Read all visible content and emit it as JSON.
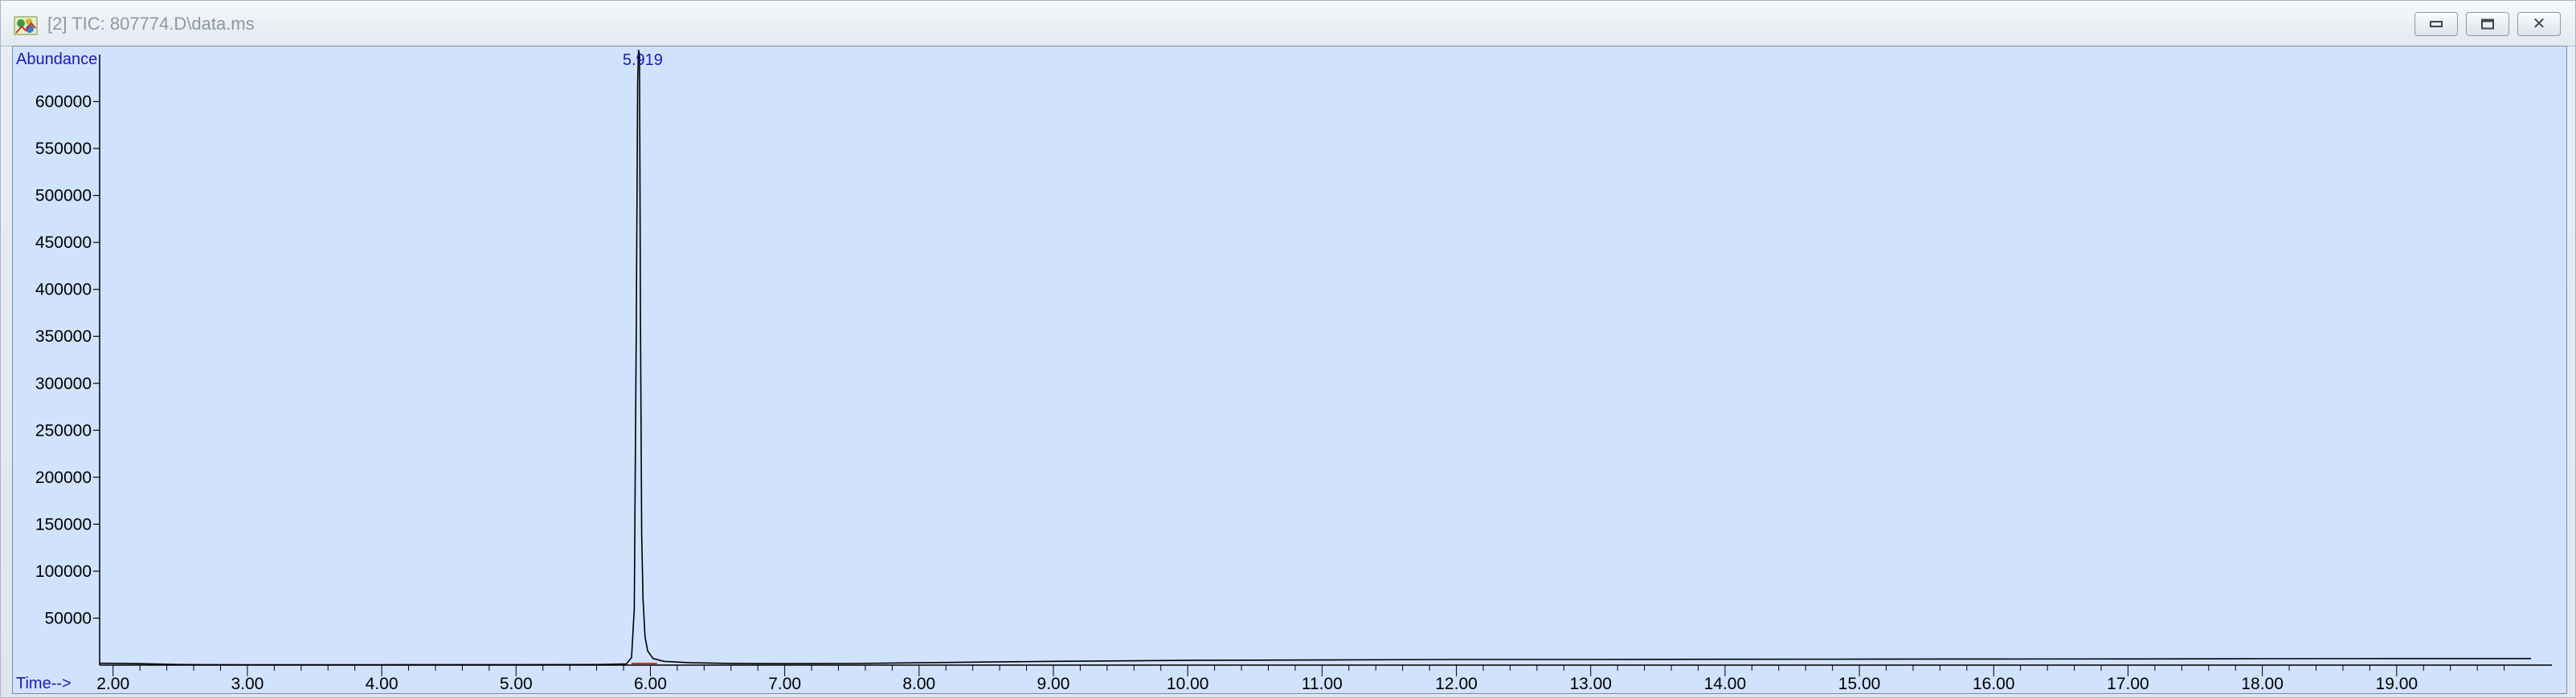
{
  "window": {
    "title": "[2] TIC: 807774.D\\data.ms",
    "icon": "chromatogram-app-icon",
    "buttons": [
      "minimize",
      "restore",
      "close"
    ]
  },
  "chart_data": {
    "type": "line",
    "ylabel": "Abundance",
    "xlabel": "Time-->",
    "xlim": [
      1.9,
      20.0
    ],
    "ylim": [
      0,
      650000
    ],
    "x_ticks": [
      2.0,
      3.0,
      4.0,
      5.0,
      6.0,
      7.0,
      8.0,
      9.0,
      10.0,
      11.0,
      12.0,
      13.0,
      14.0,
      15.0,
      16.0,
      17.0,
      18.0,
      19.0
    ],
    "x_tick_labels": [
      "2.00",
      "3.00",
      "4.00",
      "5.00",
      "6.00",
      "7.00",
      "8.00",
      "9.00",
      "10.00",
      "11.00",
      "12.00",
      "13.00",
      "14.00",
      "15.00",
      "16.00",
      "17.00",
      "18.00",
      "19.00"
    ],
    "y_ticks": [
      50000,
      100000,
      150000,
      200000,
      250000,
      300000,
      350000,
      400000,
      450000,
      500000,
      550000,
      600000
    ],
    "y_tick_labels": [
      "50000",
      "100000",
      "150000",
      "200000",
      "250000",
      "300000",
      "350000",
      "400000",
      "450000",
      "500000",
      "550000",
      "600000"
    ],
    "peak_label": "5.919",
    "series": [
      {
        "x": [
          1.9,
          2.2,
          2.5,
          3.0,
          4.0,
          5.0,
          5.6,
          5.82,
          5.86,
          5.88,
          5.895,
          5.905,
          5.912,
          5.919,
          5.926,
          5.935,
          5.945,
          5.96,
          5.98,
          6.02,
          6.1,
          6.3,
          6.6,
          7.0,
          7.5,
          8.0,
          9.0,
          10.0,
          11.0,
          12.0,
          13.0,
          14.0,
          15.0,
          16.0,
          17.0,
          18.0,
          19.0,
          20.0
        ],
        "y": [
          2000,
          1500,
          600,
          400,
          400,
          500,
          600,
          1200,
          8000,
          60000,
          360000,
          620000,
          655000,
          650000,
          370000,
          140000,
          70000,
          30000,
          15000,
          7000,
          4000,
          2500,
          1800,
          1500,
          1700,
          2500,
          4000,
          5000,
          5500,
          6000,
          6000,
          6200,
          6300,
          6500,
          6600,
          6800,
          7000,
          7000
        ]
      }
    ]
  }
}
